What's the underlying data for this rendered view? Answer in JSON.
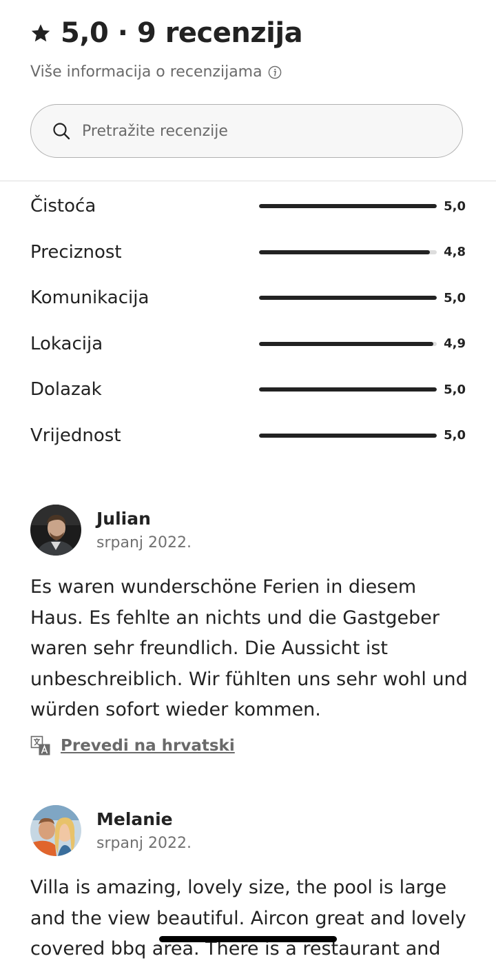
{
  "header": {
    "rating": "5,0",
    "separator": "·",
    "reviews_count": "9 recenzija",
    "more_info": "Više informacija o recenzijama"
  },
  "search": {
    "placeholder": "Pretražite recenzije"
  },
  "ratings": [
    {
      "label": "Čistoća",
      "value": "5,0",
      "score": 5.0
    },
    {
      "label": "Preciznost",
      "value": "4,8",
      "score": 4.8
    },
    {
      "label": "Komunikacija",
      "value": "5,0",
      "score": 5.0
    },
    {
      "label": "Lokacija",
      "value": "4,9",
      "score": 4.9
    },
    {
      "label": "Dolazak",
      "value": "5,0",
      "score": 5.0
    },
    {
      "label": "Vrijednost",
      "value": "5,0",
      "score": 5.0
    }
  ],
  "reviews": [
    {
      "name": "Julian",
      "date": "srpanj 2022.",
      "text": "Es waren wunderschöne Ferien in diesem Haus. Es fehlte an nichts und die Gastgeber waren sehr freundlich. Die Aussicht ist unbeschreiblich. Wir fühlten uns sehr wohl und würden sofort wieder kommen.",
      "translate_label": "Prevedi na hrvatski"
    },
    {
      "name": "Melanie",
      "date": "srpanj 2022.",
      "text": "Villa is amazing, lovely size, the pool is large and the view beautiful. Aircon great and lovely covered bbq area. There is a restaurant and"
    }
  ],
  "colors": {
    "text": "#222222",
    "muted": "#6a6a6a",
    "bar_track": "#dddddd",
    "bar_fill": "#222222"
  }
}
